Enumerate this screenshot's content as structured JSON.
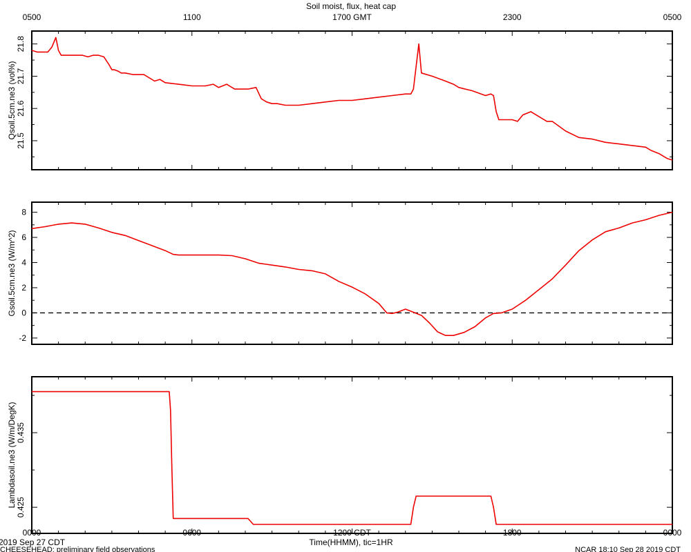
{
  "chart_data": {
    "type": "line",
    "title": "Soil moist, flux, heat cap",
    "top_axis": {
      "ticks": [
        0,
        6,
        12,
        18,
        24
      ],
      "labels": [
        "0500",
        "1100",
        "1700 GMT",
        "2300",
        "0500"
      ]
    },
    "bottom_axis": {
      "ticks": [
        0,
        6,
        12,
        18,
        24
      ],
      "labels": [
        "0000",
        "0600",
        "1200 CDT",
        "1800",
        "0000"
      ],
      "xlabel": "Time(HHMM), tic=1HR",
      "date_label": "2019 Sep 27 CDT"
    },
    "xlim": [
      0,
      24
    ],
    "trace_color": "#ee0000",
    "panels": [
      {
        "ylabel": "Qsoil.5cm.ne3 (vol%)",
        "ylim": [
          21.41,
          21.84
        ],
        "yticks": [
          21.5,
          21.6,
          21.7,
          21.8
        ],
        "yticklabels": [
          "21.5",
          "21.6",
          "21.7",
          "21.8"
        ],
        "x": [
          0,
          0.2,
          0.4,
          0.6,
          0.75,
          0.9,
          1.0,
          1.1,
          1.3,
          1.5,
          1.7,
          1.9,
          2.1,
          2.3,
          2.4,
          2.5,
          2.7,
          2.9,
          3.0,
          3.1,
          3.25,
          3.35,
          3.5,
          3.8,
          4.2,
          4.6,
          4.8,
          5.0,
          5.5,
          6.0,
          6.5,
          6.8,
          7.0,
          7.3,
          7.6,
          7.8,
          8.1,
          8.4,
          8.6,
          8.8,
          9.0,
          9.2,
          9.5,
          10.0,
          10.5,
          11.0,
          11.5,
          12.0,
          12.5,
          13.0,
          13.5,
          14.0,
          14.2,
          14.3,
          14.4,
          14.5,
          14.6,
          15.0,
          15.5,
          15.8,
          16.0,
          16.5,
          17.0,
          17.2,
          17.3,
          17.4,
          17.5,
          17.7,
          18.0,
          18.2,
          18.4,
          18.7,
          19.0,
          19.3,
          19.5,
          20.0,
          20.5,
          21.0,
          21.5,
          22.0,
          22.5,
          23.0,
          23.2,
          23.5,
          23.8,
          24.0
        ],
        "y": [
          21.78,
          21.775,
          21.775,
          21.775,
          21.79,
          21.82,
          21.78,
          21.765,
          21.765,
          21.765,
          21.765,
          21.765,
          21.76,
          21.765,
          21.765,
          21.765,
          21.76,
          21.735,
          21.72,
          21.72,
          21.715,
          21.71,
          21.71,
          21.705,
          21.705,
          21.685,
          21.69,
          21.68,
          21.675,
          21.67,
          21.67,
          21.675,
          21.665,
          21.675,
          21.66,
          21.66,
          21.66,
          21.665,
          21.63,
          21.62,
          21.615,
          21.615,
          21.61,
          21.61,
          21.615,
          21.62,
          21.625,
          21.625,
          21.63,
          21.635,
          21.64,
          21.645,
          21.645,
          21.66,
          21.73,
          21.8,
          21.71,
          21.7,
          21.685,
          21.675,
          21.665,
          21.655,
          21.64,
          21.645,
          21.64,
          21.59,
          21.565,
          21.565,
          21.565,
          21.56,
          21.58,
          21.59,
          21.575,
          21.56,
          21.56,
          21.53,
          21.51,
          21.505,
          21.495,
          21.49,
          21.485,
          21.48,
          21.47,
          21.46,
          21.445,
          21.44
        ]
      },
      {
        "ylabel": "Gsoil.5cm.ne3 (W/m^2)",
        "ylim": [
          -2.5,
          8.8
        ],
        "yticks": [
          -2,
          0,
          2,
          4,
          6,
          8
        ],
        "yticklabels": [
          "-2",
          "0",
          "2",
          "4",
          "6",
          "8"
        ],
        "reference_value": 0,
        "x": [
          0,
          0.5,
          1.0,
          1.5,
          2.0,
          2.5,
          3.0,
          3.5,
          4.0,
          4.5,
          5.0,
          5.3,
          5.5,
          6.0,
          6.5,
          7.0,
          7.5,
          8.0,
          8.5,
          9.0,
          9.5,
          10.0,
          10.5,
          11.0,
          11.5,
          12.0,
          12.5,
          13.0,
          13.3,
          13.5,
          13.7,
          14.0,
          14.3,
          14.6,
          14.9,
          15.2,
          15.5,
          15.8,
          16.2,
          16.6,
          17.0,
          17.3,
          17.6,
          18.0,
          18.5,
          19.0,
          19.5,
          20.0,
          20.5,
          21.0,
          21.5,
          22.0,
          22.5,
          23.0,
          23.5,
          24.0
        ],
        "y": [
          6.7,
          6.85,
          7.05,
          7.15,
          7.05,
          6.75,
          6.4,
          6.15,
          5.75,
          5.35,
          4.95,
          4.65,
          4.6,
          4.6,
          4.6,
          4.6,
          4.55,
          4.3,
          3.95,
          3.8,
          3.65,
          3.45,
          3.35,
          3.1,
          2.5,
          2.05,
          1.5,
          0.75,
          0.0,
          -0.05,
          0.05,
          0.3,
          0.05,
          -0.2,
          -0.8,
          -1.5,
          -1.8,
          -1.8,
          -1.55,
          -1.1,
          -0.4,
          -0.05,
          0.0,
          0.3,
          1.0,
          1.85,
          2.7,
          3.8,
          4.95,
          5.8,
          6.45,
          6.75,
          7.15,
          7.4,
          7.75,
          8.0
        ]
      },
      {
        "ylabel": "Lambdasoil.ne3 (W/m/DegK)",
        "ylim": [
          0.4215,
          0.4425
        ],
        "yticks": [
          0.425,
          0.435
        ],
        "yticklabels": [
          "0.425",
          "0.435"
        ],
        "x": [
          0,
          5.1,
          5.15,
          5.2,
          5.25,
          5.3,
          8.1,
          8.3,
          14.2,
          14.3,
          14.4,
          17.2,
          17.3,
          17.4,
          24.0
        ],
        "y": [
          0.4405,
          0.4405,
          0.4405,
          0.438,
          0.43,
          0.4235,
          0.4235,
          0.4227,
          0.4227,
          0.425,
          0.4265,
          0.4265,
          0.425,
          0.4227,
          0.4227
        ]
      }
    ]
  },
  "footer": {
    "left": "CHEESEHEAD: preliminary field observations",
    "right": "NCAR 18:10 Sep 28 2019 CDT"
  }
}
